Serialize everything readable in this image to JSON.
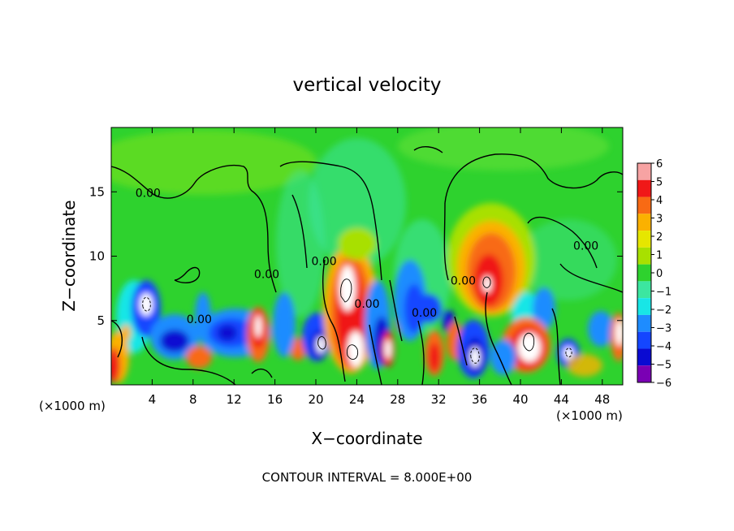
{
  "chart_data": {
    "type": "heatmap",
    "title": "vertical velocity",
    "xlabel": "X−coordinate",
    "ylabel": "Z−coordinate",
    "x_unit_left": "(×1000 m)",
    "x_unit_right": "(×1000 m)",
    "xlim": [
      0,
      50
    ],
    "ylim": [
      0,
      20
    ],
    "x_ticks": [
      4,
      8,
      12,
      16,
      20,
      24,
      28,
      32,
      36,
      40,
      44,
      48
    ],
    "y_ticks": [
      5,
      10,
      15
    ],
    "colorbar": {
      "levels": [
        6,
        5,
        4,
        3,
        2,
        1,
        0,
        -1,
        -2,
        -3,
        -4,
        -5,
        -6
      ],
      "labels": [
        "6",
        "5",
        "4",
        "3",
        "2",
        "1",
        "0",
        "−1",
        "−2",
        "−3",
        "−4",
        "−5",
        "−6"
      ],
      "colors": [
        "#f7a3a3",
        "#f01818",
        "#f86a14",
        "#fbb100",
        "#e6e600",
        "#a8e000",
        "#2ed22e",
        "#3ce6a0",
        "#18e6e6",
        "#1e8cff",
        "#1446ff",
        "#0a0ad2",
        "#7a00b4"
      ]
    },
    "contour_labels": [
      {
        "text": "0.00",
        "x": 3.6,
        "y": 14.6
      },
      {
        "text": "0.00",
        "x": 15.2,
        "y": 8.3
      },
      {
        "text": "0.00",
        "x": 20.8,
        "y": 9.3
      },
      {
        "text": "0.00",
        "x": 25.0,
        "y": 6.0
      },
      {
        "text": "0.00",
        "x": 30.6,
        "y": 5.3
      },
      {
        "text": "0.00",
        "x": 34.4,
        "y": 7.8
      },
      {
        "text": "0.00",
        "x": 46.4,
        "y": 10.5
      },
      {
        "text": "0.00",
        "x": 8.6,
        "y": 4.8
      }
    ],
    "footer": "CONTOUR INTERVAL = 8.000E+00"
  }
}
